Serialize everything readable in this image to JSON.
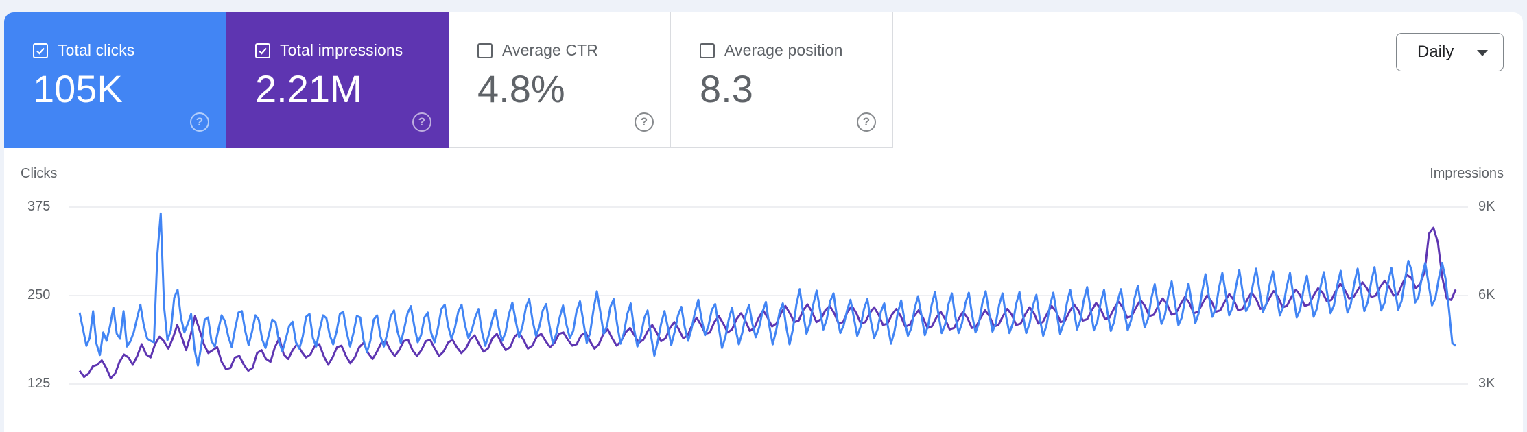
{
  "metrics": [
    {
      "label": "Total clicks",
      "value": "105K",
      "checked": true
    },
    {
      "label": "Total impressions",
      "value": "2.21M",
      "checked": true
    },
    {
      "label": "Average CTR",
      "value": "4.8%",
      "checked": false
    },
    {
      "label": "Average position",
      "value": "8.3",
      "checked": false
    }
  ],
  "help_glyph": "?",
  "granularity": {
    "selected": "Daily"
  },
  "colors": {
    "clicks": "#4285f4",
    "impressions": "#5e35b1",
    "grid": "#e8eaed"
  },
  "chart_data": {
    "type": "line",
    "left_axis": {
      "title": "Clicks",
      "min": 125,
      "max": 375,
      "ticks": [
        {
          "value": 375,
          "label": "375"
        },
        {
          "value": 250,
          "label": "250"
        },
        {
          "value": 125,
          "label": "125"
        }
      ]
    },
    "right_axis": {
      "title": "Impressions",
      "min": 3000,
      "max": 9000,
      "ticks": [
        {
          "value": 9000,
          "label": "9K"
        },
        {
          "value": 6000,
          "label": "6K"
        },
        {
          "value": 3000,
          "label": "3K"
        }
      ]
    },
    "grid": true,
    "series": [
      {
        "key": "clicks",
        "axis": "left",
        "color": "#4285f4",
        "values": [
          226,
          203,
          179,
          190,
          228,
          182,
          166,
          198,
          186,
          207,
          233,
          196,
          189,
          228,
          178,
          185,
          198,
          218,
          237,
          208,
          189,
          186,
          184,
          308,
          366,
          234,
          187,
          201,
          247,
          258,
          218,
          198,
          210,
          224,
          174,
          151,
          179,
          216,
          219,
          186,
          178,
          201,
          222,
          214,
          192,
          177,
          203,
          226,
          228,
          200,
          180,
          199,
          222,
          216,
          188,
          176,
          195,
          216,
          212,
          185,
          171,
          189,
          207,
          213,
          184,
          175,
          192,
          220,
          224,
          190,
          178,
          201,
          222,
          218,
          194,
          181,
          199,
          224,
          227,
          198,
          178,
          197,
          221,
          219,
          187,
          170,
          186,
          216,
          222,
          192,
          178,
          196,
          221,
          229,
          200,
          183,
          203,
          225,
          235,
          207,
          184,
          194,
          219,
          226,
          197,
          184,
          204,
          231,
          237,
          207,
          189,
          204,
          227,
          237,
          208,
          190,
          201,
          219,
          231,
          199,
          179,
          194,
          214,
          230,
          204,
          186,
          198,
          224,
          240,
          214,
          191,
          207,
          233,
          245,
          214,
          193,
          206,
          229,
          238,
          207,
          182,
          196,
          219,
          236,
          209,
          190,
          200,
          228,
          242,
          213,
          183,
          197,
          230,
          256,
          228,
          196,
          207,
          234,
          245,
          209,
          182,
          197,
          224,
          239,
          203,
          178,
          193,
          218,
          229,
          193,
          165,
          185,
          210,
          228,
          205,
          180,
          199,
          222,
          234,
          205,
          186,
          203,
          226,
          244,
          216,
          194,
          207,
          230,
          238,
          207,
          176,
          191,
          216,
          233,
          203,
          181,
          197,
          222,
          237,
          210,
          191,
          205,
          227,
          241,
          207,
          181,
          200,
          226,
          239,
          206,
          181,
          203,
          237,
          259,
          225,
          196,
          210,
          237,
          257,
          230,
          202,
          217,
          242,
          253,
          220,
          197,
          208,
          229,
          244,
          219,
          193,
          206,
          231,
          245,
          215,
          190,
          202,
          227,
          239,
          208,
          182,
          199,
          226,
          243,
          215,
          193,
          204,
          232,
          249,
          222,
          194,
          208,
          236,
          255,
          224,
          197,
          209,
          238,
          253,
          221,
          197,
          211,
          239,
          254,
          222,
          198,
          211,
          239,
          256,
          226,
          199,
          211,
          237,
          253,
          221,
          197,
          210,
          238,
          255,
          223,
          197,
          211,
          236,
          251,
          217,
          193,
          208,
          236,
          254,
          225,
          196,
          210,
          239,
          258,
          231,
          202,
          215,
          243,
          262,
          231,
          201,
          213,
          240,
          258,
          227,
          200,
          213,
          242,
          259,
          227,
          201,
          215,
          246,
          264,
          233,
          205,
          217,
          246,
          266,
          236,
          210,
          222,
          250,
          270,
          239,
          208,
          219,
          245,
          267,
          238,
          211,
          225,
          255,
          280,
          250,
          220,
          231,
          261,
          282,
          253,
          222,
          233,
          262,
          286,
          255,
          228,
          237,
          265,
          288,
          257,
          227,
          238,
          266,
          284,
          251,
          222,
          234,
          262,
          282,
          250,
          219,
          230,
          258,
          278,
          247,
          220,
          232,
          262,
          283,
          253,
          225,
          236,
          265,
          285,
          254,
          226,
          238,
          267,
          288,
          257,
          228,
          241,
          269,
          290,
          258,
          229,
          240,
          268,
          289,
          259,
          230,
          242,
          272,
          299,
          285,
          240,
          248,
          276,
          296,
          266,
          236,
          246,
          274,
          296,
          274,
          232,
          183,
          179
        ]
      },
      {
        "key": "impressions",
        "axis": "right",
        "color": "#5e35b1",
        "values": [
          3450,
          3240,
          3350,
          3600,
          3650,
          3800,
          3550,
          3200,
          3350,
          3750,
          4000,
          3900,
          3650,
          3950,
          4350,
          4000,
          3900,
          4350,
          4600,
          4450,
          4200,
          4550,
          5000,
          4600,
          4150,
          4650,
          5300,
          4850,
          4350,
          4050,
          4150,
          4250,
          3750,
          3500,
          3550,
          3900,
          3950,
          3650,
          3450,
          3550,
          4050,
          4150,
          3850,
          3750,
          4250,
          4550,
          4000,
          3850,
          4150,
          4350,
          4100,
          3900,
          4000,
          4300,
          4350,
          3950,
          3650,
          3900,
          4250,
          4300,
          3950,
          3700,
          3900,
          4250,
          4400,
          4050,
          3850,
          4100,
          4400,
          4450,
          4150,
          3950,
          4150,
          4450,
          4500,
          4150,
          3950,
          4150,
          4450,
          4500,
          4200,
          3950,
          4100,
          4400,
          4500,
          4250,
          4050,
          4200,
          4500,
          4650,
          4350,
          4100,
          4200,
          4550,
          4700,
          4400,
          4150,
          4250,
          4600,
          4750,
          4500,
          4200,
          4300,
          4600,
          4700,
          4450,
          4250,
          4400,
          4700,
          4750,
          4500,
          4300,
          4350,
          4650,
          4750,
          4450,
          4200,
          4350,
          4700,
          4850,
          4550,
          4300,
          4450,
          4750,
          4900,
          4650,
          4400,
          4500,
          4800,
          5000,
          4750,
          4450,
          4550,
          4900,
          5100,
          4850,
          4550,
          4650,
          5000,
          5250,
          5000,
          4700,
          4750,
          5100,
          5300,
          5050,
          4750,
          4850,
          5200,
          5400,
          5150,
          4800,
          4900,
          5250,
          5500,
          5250,
          4950,
          5050,
          5400,
          5650,
          5400,
          5100,
          5150,
          5500,
          5700,
          5450,
          5100,
          5200,
          5500,
          5650,
          5400,
          5050,
          5100,
          5450,
          5650,
          5400,
          5050,
          5100,
          5400,
          5600,
          5350,
          5000,
          5050,
          5350,
          5550,
          5300,
          4950,
          5000,
          5300,
          5500,
          5250,
          4900,
          4950,
          5250,
          5450,
          5200,
          4850,
          4900,
          5200,
          5450,
          5250,
          4900,
          4950,
          5250,
          5500,
          5300,
          4950,
          5000,
          5300,
          5550,
          5350,
          5000,
          5050,
          5350,
          5600,
          5400,
          5050,
          5100,
          5400,
          5650,
          5450,
          5100,
          5150,
          5450,
          5700,
          5500,
          5150,
          5200,
          5500,
          5750,
          5550,
          5200,
          5250,
          5550,
          5800,
          5600,
          5250,
          5300,
          5600,
          5850,
          5650,
          5300,
          5350,
          5650,
          5900,
          5700,
          5350,
          5400,
          5700,
          5950,
          5750,
          5400,
          5450,
          5750,
          6000,
          5800,
          5450,
          5500,
          5800,
          6050,
          5850,
          5500,
          5550,
          5850,
          6100,
          5900,
          5550,
          5600,
          5900,
          6150,
          5950,
          5600,
          5650,
          5950,
          6200,
          6000,
          5650,
          5700,
          6000,
          6250,
          6100,
          5800,
          5850,
          6150,
          6400,
          6200,
          5900,
          5950,
          6200,
          6450,
          6250,
          5950,
          6000,
          6300,
          6500,
          6300,
          6000,
          6050,
          6400,
          6700,
          6600,
          6250,
          6400,
          6800,
          8100,
          8300,
          7800,
          6600,
          5900,
          5850,
          6200
        ]
      }
    ]
  }
}
